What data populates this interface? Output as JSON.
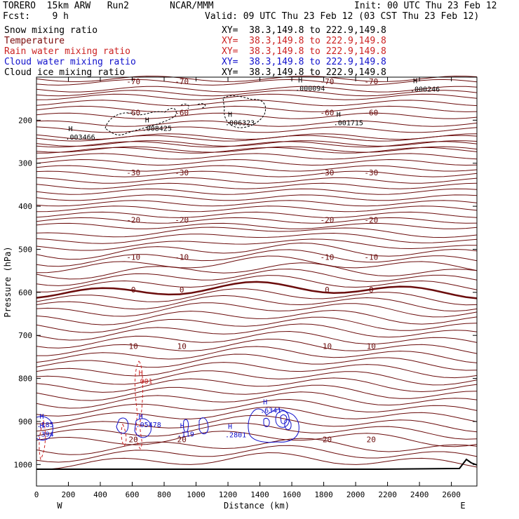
{
  "header": {
    "model": "TORERO  15km ARW   Run2",
    "org": "NCAR/MMM",
    "init": "Init: 00 UTC Thu 23 Feb 12",
    "fcst": "Fcst:    9 h",
    "valid": "Valid: 09 UTC Thu 23 Feb 12 (03 CST Thu 23 Feb 12)"
  },
  "fields": [
    {
      "name": "Snow mixing ratio",
      "color": "#000000",
      "xy": "XY=  38.3,149.8 to 222.9,149.8"
    },
    {
      "name": "Temperature",
      "color": "#7a0a0a",
      "xy": "XY=  38.3,149.8 to 222.9,149.8"
    },
    {
      "name": "Rain water mixing ratio",
      "color": "#cc2222",
      "xy": "XY=  38.3,149.8 to 222.9,149.8"
    },
    {
      "name": "Cloud water mixing ratio",
      "color": "#1111cc",
      "xy": "XY=  38.3,149.8 to 222.9,149.8"
    },
    {
      "name": "Cloud ice mixing ratio",
      "color": "#000000",
      "xy": "XY=  38.3,149.8 to 222.9,149.8"
    }
  ],
  "chart_data": {
    "type": "contour cross-section",
    "xlabel": "Distance (km)",
    "ylabel": "Pressure (hPa)",
    "xlim": [
      0,
      2760
    ],
    "ylim": [
      1050,
      100
    ],
    "x_ticks": [
      0,
      200,
      400,
      600,
      800,
      1000,
      1200,
      1400,
      1600,
      1800,
      2000,
      2200,
      2400,
      2600
    ],
    "y_ticks": [
      200,
      300,
      400,
      500,
      600,
      700,
      800,
      900,
      1000
    ],
    "end_labels": {
      "left": "W",
      "right": "E"
    },
    "temperature_isotherms": [
      {
        "value": -70,
        "pressure_levels": [
          104,
          112
        ]
      },
      {
        "value": -60,
        "pressure_levels": [
          128,
          137,
          146,
          160,
          174,
          190,
          208,
          222,
          238,
          254,
          268
        ]
      },
      {
        "value": -30,
        "pressure_levels": [
          242,
          256,
          270,
          284,
          298,
          312,
          325,
          340,
          353,
          366
        ]
      },
      {
        "value": -20,
        "pressure_levels": [
          380,
          393,
          406,
          420,
          433,
          446,
          460,
          474,
          489,
          504,
          520,
          535
        ]
      },
      {
        "value": 0,
        "pressure_levels": [
          550,
          565,
          580,
          595,
          610,
          625,
          640,
          658,
          675,
          692,
          710,
          728,
          745,
          762,
          780,
          798,
          815,
          833,
          850,
          868,
          886,
          905,
          922,
          940
        ]
      },
      {
        "value": 20,
        "pressure_levels": [
          958,
          975,
          992
        ]
      }
    ],
    "labeled_isotherms": [
      {
        "label": "-70",
        "pressure": 110
      },
      {
        "label": "-60",
        "pressure": 182
      },
      {
        "label": "-30",
        "pressure": 322
      },
      {
        "label": "-20",
        "pressure": 432
      },
      {
        "label": "-10",
        "pressure": 518
      },
      {
        "label": "0",
        "pressure": 594
      },
      {
        "label": "10",
        "pressure": 725
      },
      {
        "label": "20",
        "pressure": 942
      }
    ],
    "maxima": [
      {
        "x_km": 200,
        "pressure": 245,
        "value": ".003466"
      },
      {
        "x_km": 680,
        "pressure": 225,
        "value": ".008425"
      },
      {
        "x_km": 1200,
        "pressure": 212,
        "value": ".006323"
      },
      {
        "x_km": 1880,
        "pressure": 212,
        "value": ".001715"
      },
      {
        "x_km": 1640,
        "pressure": 132,
        "value": ".000094"
      },
      {
        "x_km": 2360,
        "pressure": 133,
        "value": ".000246"
      },
      {
        "x_km": 640,
        "pressure": 812,
        "value": ".001"
      },
      {
        "x_km": 1420,
        "pressure": 880,
        "value": ".6341"
      },
      {
        "x_km": 20,
        "pressure": 913,
        "value": ".185"
      },
      {
        "x_km": 20,
        "pressure": 935,
        "value": ".394"
      },
      {
        "x_km": 640,
        "pressure": 913,
        "value": ".05478"
      },
      {
        "x_km": 900,
        "pressure": 935,
        "value": ".119"
      },
      {
        "x_km": 1200,
        "pressure": 937,
        "value": ".2801"
      }
    ]
  }
}
